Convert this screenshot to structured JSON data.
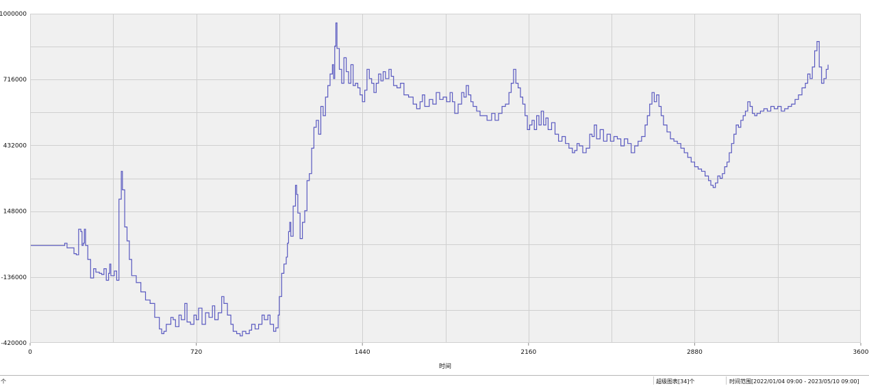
{
  "chart_data": {
    "type": "line",
    "title": "",
    "xlabel": "时间",
    "ylabel": "",
    "xlim": [
      0,
      3600
    ],
    "ylim": [
      -420000,
      1000000
    ],
    "x_ticks": [
      0,
      720,
      1440,
      2160,
      2880,
      3600
    ],
    "y_ticks": [
      -420000,
      -136000,
      148000,
      432000,
      716000,
      1000000
    ],
    "grid": true,
    "colors": {
      "line": "#5858c0",
      "plot_bg": "#f0f0f0",
      "grid": "#cfcfcf"
    },
    "series": [
      {
        "points": [
          [
            0,
            0
          ],
          [
            140,
            0
          ],
          [
            150,
            10000
          ],
          [
            160,
            -10000
          ],
          [
            190,
            -35000
          ],
          [
            200,
            -40000
          ],
          [
            210,
            70000
          ],
          [
            220,
            60000
          ],
          [
            225,
            0
          ],
          [
            230,
            10000
          ],
          [
            235,
            70000
          ],
          [
            240,
            0
          ],
          [
            250,
            -60000
          ],
          [
            262,
            -140000
          ],
          [
            275,
            -100000
          ],
          [
            285,
            -115000
          ],
          [
            300,
            -120000
          ],
          [
            310,
            -125000
          ],
          [
            320,
            -100000
          ],
          [
            330,
            -150000
          ],
          [
            340,
            -120000
          ],
          [
            345,
            -80000
          ],
          [
            350,
            -130000
          ],
          [
            365,
            -110000
          ],
          [
            375,
            -150000
          ],
          [
            385,
            200000
          ],
          [
            395,
            320000
          ],
          [
            400,
            240000
          ],
          [
            410,
            80000
          ],
          [
            420,
            20000
          ],
          [
            430,
            -60000
          ],
          [
            440,
            -130000
          ],
          [
            460,
            -160000
          ],
          [
            480,
            -200000
          ],
          [
            500,
            -235000
          ],
          [
            520,
            -250000
          ],
          [
            540,
            -310000
          ],
          [
            560,
            -360000
          ],
          [
            570,
            -380000
          ],
          [
            580,
            -370000
          ],
          [
            590,
            -340000
          ],
          [
            610,
            -310000
          ],
          [
            620,
            -320000
          ],
          [
            630,
            -350000
          ],
          [
            645,
            -300000
          ],
          [
            655,
            -320000
          ],
          [
            670,
            -250000
          ],
          [
            680,
            -330000
          ],
          [
            695,
            -340000
          ],
          [
            710,
            -300000
          ],
          [
            720,
            -320000
          ],
          [
            730,
            -270000
          ],
          [
            745,
            -340000
          ],
          [
            760,
            -290000
          ],
          [
            775,
            -310000
          ],
          [
            790,
            -260000
          ],
          [
            800,
            -320000
          ],
          [
            815,
            -290000
          ],
          [
            830,
            -220000
          ],
          [
            840,
            -250000
          ],
          [
            855,
            -300000
          ],
          [
            870,
            -340000
          ],
          [
            880,
            -370000
          ],
          [
            895,
            -380000
          ],
          [
            910,
            -390000
          ],
          [
            920,
            -370000
          ],
          [
            935,
            -380000
          ],
          [
            950,
            -365000
          ],
          [
            960,
            -340000
          ],
          [
            975,
            -360000
          ],
          [
            990,
            -340000
          ],
          [
            1005,
            -300000
          ],
          [
            1015,
            -320000
          ],
          [
            1030,
            -300000
          ],
          [
            1040,
            -340000
          ],
          [
            1055,
            -370000
          ],
          [
            1065,
            -355000
          ],
          [
            1075,
            -300000
          ],
          [
            1080,
            -220000
          ],
          [
            1090,
            -120000
          ],
          [
            1100,
            -80000
          ],
          [
            1110,
            -50000
          ],
          [
            1115,
            10000
          ],
          [
            1120,
            60000
          ],
          [
            1125,
            100000
          ],
          [
            1130,
            40000
          ],
          [
            1140,
            170000
          ],
          [
            1150,
            260000
          ],
          [
            1155,
            220000
          ],
          [
            1160,
            140000
          ],
          [
            1170,
            30000
          ],
          [
            1180,
            100000
          ],
          [
            1190,
            150000
          ],
          [
            1200,
            280000
          ],
          [
            1210,
            310000
          ],
          [
            1220,
            420000
          ],
          [
            1230,
            510000
          ],
          [
            1240,
            540000
          ],
          [
            1250,
            480000
          ],
          [
            1260,
            600000
          ],
          [
            1270,
            560000
          ],
          [
            1280,
            640000
          ],
          [
            1290,
            690000
          ],
          [
            1300,
            740000
          ],
          [
            1310,
            780000
          ],
          [
            1315,
            720000
          ],
          [
            1320,
            860000
          ],
          [
            1325,
            960000
          ],
          [
            1330,
            850000
          ],
          [
            1340,
            760000
          ],
          [
            1350,
            700000
          ],
          [
            1360,
            810000
          ],
          [
            1370,
            750000
          ],
          [
            1380,
            700000
          ],
          [
            1390,
            780000
          ],
          [
            1400,
            690000
          ],
          [
            1410,
            700000
          ],
          [
            1420,
            680000
          ],
          [
            1430,
            650000
          ],
          [
            1440,
            620000
          ],
          [
            1450,
            670000
          ],
          [
            1460,
            760000
          ],
          [
            1470,
            720000
          ],
          [
            1480,
            700000
          ],
          [
            1490,
            660000
          ],
          [
            1500,
            700000
          ],
          [
            1510,
            740000
          ],
          [
            1520,
            710000
          ],
          [
            1530,
            750000
          ],
          [
            1540,
            720000
          ],
          [
            1555,
            760000
          ],
          [
            1565,
            730000
          ],
          [
            1575,
            690000
          ],
          [
            1590,
            680000
          ],
          [
            1605,
            700000
          ],
          [
            1620,
            650000
          ],
          [
            1640,
            640000
          ],
          [
            1660,
            610000
          ],
          [
            1675,
            590000
          ],
          [
            1690,
            620000
          ],
          [
            1700,
            650000
          ],
          [
            1710,
            600000
          ],
          [
            1730,
            630000
          ],
          [
            1745,
            610000
          ],
          [
            1760,
            660000
          ],
          [
            1775,
            630000
          ],
          [
            1790,
            640000
          ],
          [
            1805,
            620000
          ],
          [
            1820,
            660000
          ],
          [
            1830,
            620000
          ],
          [
            1840,
            570000
          ],
          [
            1855,
            610000
          ],
          [
            1870,
            660000
          ],
          [
            1880,
            640000
          ],
          [
            1890,
            690000
          ],
          [
            1900,
            650000
          ],
          [
            1910,
            620000
          ],
          [
            1920,
            600000
          ],
          [
            1935,
            580000
          ],
          [
            1950,
            560000
          ],
          [
            1965,
            560000
          ],
          [
            1980,
            540000
          ],
          [
            2000,
            570000
          ],
          [
            2015,
            540000
          ],
          [
            2030,
            570000
          ],
          [
            2045,
            600000
          ],
          [
            2060,
            610000
          ],
          [
            2075,
            660000
          ],
          [
            2085,
            700000
          ],
          [
            2095,
            760000
          ],
          [
            2105,
            700000
          ],
          [
            2115,
            680000
          ],
          [
            2125,
            640000
          ],
          [
            2135,
            610000
          ],
          [
            2145,
            560000
          ],
          [
            2155,
            500000
          ],
          [
            2165,
            520000
          ],
          [
            2175,
            540000
          ],
          [
            2185,
            500000
          ],
          [
            2195,
            560000
          ],
          [
            2205,
            520000
          ],
          [
            2215,
            580000
          ],
          [
            2225,
            520000
          ],
          [
            2235,
            550000
          ],
          [
            2245,
            500000
          ],
          [
            2260,
            530000
          ],
          [
            2275,
            480000
          ],
          [
            2290,
            450000
          ],
          [
            2305,
            470000
          ],
          [
            2320,
            440000
          ],
          [
            2335,
            420000
          ],
          [
            2350,
            400000
          ],
          [
            2360,
            410000
          ],
          [
            2370,
            440000
          ],
          [
            2380,
            430000
          ],
          [
            2395,
            400000
          ],
          [
            2410,
            420000
          ],
          [
            2425,
            480000
          ],
          [
            2435,
            470000
          ],
          [
            2445,
            520000
          ],
          [
            2455,
            460000
          ],
          [
            2470,
            500000
          ],
          [
            2485,
            450000
          ],
          [
            2500,
            480000
          ],
          [
            2515,
            450000
          ],
          [
            2530,
            470000
          ],
          [
            2545,
            460000
          ],
          [
            2560,
            430000
          ],
          [
            2575,
            460000
          ],
          [
            2590,
            440000
          ],
          [
            2605,
            400000
          ],
          [
            2620,
            430000
          ],
          [
            2635,
            450000
          ],
          [
            2650,
            470000
          ],
          [
            2665,
            520000
          ],
          [
            2675,
            560000
          ],
          [
            2685,
            610000
          ],
          [
            2695,
            660000
          ],
          [
            2705,
            620000
          ],
          [
            2715,
            650000
          ],
          [
            2725,
            600000
          ],
          [
            2735,
            560000
          ],
          [
            2745,
            520000
          ],
          [
            2760,
            490000
          ],
          [
            2775,
            460000
          ],
          [
            2790,
            450000
          ],
          [
            2805,
            440000
          ],
          [
            2820,
            420000
          ],
          [
            2835,
            400000
          ],
          [
            2850,
            380000
          ],
          [
            2865,
            360000
          ],
          [
            2880,
            340000
          ],
          [
            2895,
            330000
          ],
          [
            2910,
            320000
          ],
          [
            2925,
            300000
          ],
          [
            2940,
            280000
          ],
          [
            2950,
            260000
          ],
          [
            2960,
            250000
          ],
          [
            2970,
            270000
          ],
          [
            2980,
            300000
          ],
          [
            2990,
            290000
          ],
          [
            3000,
            310000
          ],
          [
            3010,
            340000
          ],
          [
            3020,
            360000
          ],
          [
            3030,
            400000
          ],
          [
            3040,
            440000
          ],
          [
            3050,
            480000
          ],
          [
            3060,
            520000
          ],
          [
            3070,
            510000
          ],
          [
            3080,
            540000
          ],
          [
            3090,
            560000
          ],
          [
            3100,
            580000
          ],
          [
            3110,
            620000
          ],
          [
            3120,
            600000
          ],
          [
            3130,
            570000
          ],
          [
            3140,
            560000
          ],
          [
            3150,
            570000
          ],
          [
            3165,
            580000
          ],
          [
            3180,
            590000
          ],
          [
            3195,
            580000
          ],
          [
            3210,
            600000
          ],
          [
            3225,
            590000
          ],
          [
            3240,
            600000
          ],
          [
            3255,
            580000
          ],
          [
            3270,
            590000
          ],
          [
            3285,
            600000
          ],
          [
            3300,
            610000
          ],
          [
            3315,
            630000
          ],
          [
            3330,
            650000
          ],
          [
            3345,
            680000
          ],
          [
            3360,
            700000
          ],
          [
            3370,
            740000
          ],
          [
            3380,
            720000
          ],
          [
            3390,
            770000
          ],
          [
            3400,
            840000
          ],
          [
            3410,
            880000
          ],
          [
            3420,
            770000
          ],
          [
            3430,
            700000
          ],
          [
            3440,
            720000
          ],
          [
            3450,
            760000
          ],
          [
            3458,
            780000
          ]
        ]
      }
    ]
  },
  "status_bar": {
    "left": "个",
    "series_count": "超级图表[34]个",
    "time_range": "时间范围[2022/01/04 09:00 - 2023/05/10 09:00]"
  }
}
